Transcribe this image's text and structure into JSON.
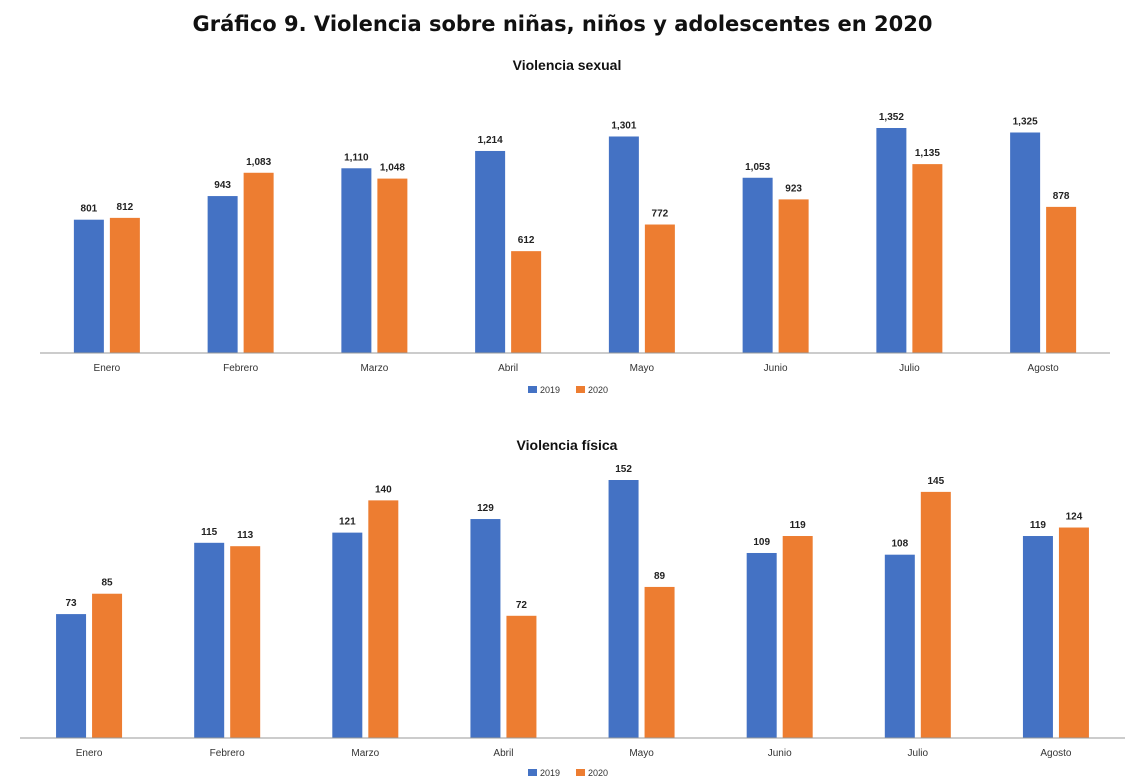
{
  "page_title": "Gráfico 9. Violencia sobre niñas, niños y adolescentes en 2020",
  "colors": {
    "2019": "#4472C4",
    "2020": "#ED7D31",
    "axis": "#999999"
  },
  "chart_data": [
    {
      "type": "bar",
      "title": "Violencia sexual",
      "categories": [
        "Enero",
        "Febrero",
        "Marzo",
        "Abril",
        "Mayo",
        "Junio",
        "Julio",
        "Agosto"
      ],
      "series": [
        {
          "name": "2019",
          "values": [
            801,
            943,
            1110,
            1214,
            1301,
            1053,
            1352,
            1325
          ],
          "labels": [
            "801",
            "943",
            "1,110",
            "1,214",
            "1,301",
            "1,053",
            "1,352",
            "1,325"
          ]
        },
        {
          "name": "2020",
          "values": [
            812,
            1083,
            1048,
            612,
            772,
            923,
            1135,
            878
          ],
          "labels": [
            "812",
            "1,083",
            "1,048",
            "612",
            "772",
            "923",
            "1,135",
            "878"
          ]
        }
      ],
      "legend_position": "bottom",
      "grid": false
    },
    {
      "type": "bar",
      "title": "Violencia física",
      "categories": [
        "Enero",
        "Febrero",
        "Marzo",
        "Abril",
        "Mayo",
        "Junio",
        "Julio",
        "Agosto"
      ],
      "series": [
        {
          "name": "2019",
          "values": [
            73,
            115,
            121,
            129,
            152,
            109,
            108,
            119
          ],
          "labels": [
            "73",
            "115",
            "121",
            "129",
            "152",
            "109",
            "108",
            "119"
          ]
        },
        {
          "name": "2020",
          "values": [
            85,
            113,
            140,
            72,
            89,
            119,
            145,
            124
          ],
          "labels": [
            "85",
            "113",
            "140",
            "72",
            "89",
            "119",
            "145",
            "124"
          ]
        }
      ],
      "legend_position": "bottom",
      "grid": false
    }
  ]
}
